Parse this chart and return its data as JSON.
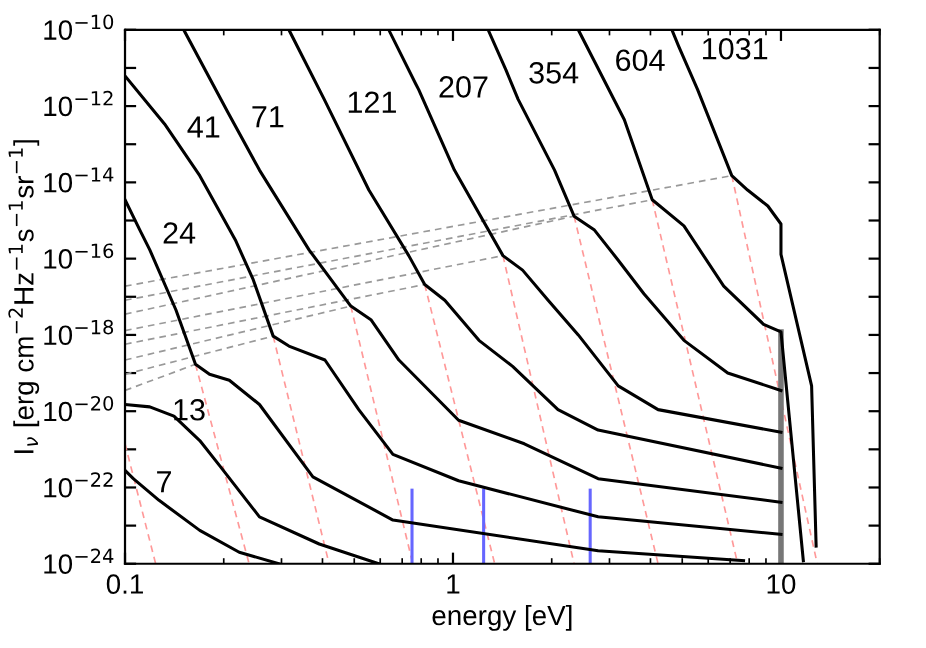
{
  "chart_data": {
    "type": "line",
    "xlabel": "energy [eV]",
    "ylabel": "I$_{ν}$ [erg cm$^{−2}$Hz$^{−1}$s$^{−1}$sr$^{−1}$]",
    "log": "xy",
    "grid": false,
    "legend": "top",
    "marker": "none",
    "xlim": [
      0.1,
      20
    ],
    "xticks": [
      0.1,
      1,
      10
    ],
    "ylim": [
      1e-24,
      1e-10
    ],
    "yticks": [
      {
        "value": 1e-10,
        "label": "10$^{−10}$"
      },
      {
        "value": 1e-11,
        "label": null
      },
      {
        "value": 1e-12,
        "label": "10$^{−12}$"
      },
      {
        "value": 1e-13,
        "label": null
      },
      {
        "value": 1e-14,
        "label": "10$^{−14}$"
      },
      {
        "value": 1e-15,
        "label": null
      },
      {
        "value": 1e-16,
        "label": "10$^{−16}$"
      },
      {
        "value": 1e-17,
        "label": null
      },
      {
        "value": 1e-18,
        "label": "10$^{−18}$"
      },
      {
        "value": 1e-19,
        "label": null
      },
      {
        "value": 1e-20,
        "label": "10$^{−20}$"
      },
      {
        "value": 1e-21,
        "label": null
      },
      {
        "value": 1e-22,
        "label": "10$^{−22}$"
      },
      {
        "value": 1e-23,
        "label": null
      },
      {
        "value": 1e-24,
        "label": "10$^{−24}$"
      }
    ],
    "series": [
      {
        "color": "#ff9999",
        "line_style": "dashed",
        "x": [
          7.08,
          12.9
        ],
        "values": [
          1.5e-14,
          1e-24
        ]
      },
      {
        "color": "#ff9999",
        "line_style": "dashed",
        "x": [
          4.05,
          7.38
        ],
        "values": [
          3.5e-15,
          1e-24
        ]
      },
      {
        "color": "#ff9999",
        "line_style": "dashed",
        "x": [
          2.34,
          4.22
        ],
        "values": [
          1.3e-15,
          1e-24
        ]
      },
      {
        "color": "#ff9999",
        "line_style": "dashed",
        "x": [
          1.42,
          2.34
        ],
        "values": [
          1.2e-16,
          1e-24
        ]
      },
      {
        "color": "#ff9999",
        "line_style": "dashed",
        "x": [
          0.82,
          1.34
        ],
        "values": [
          2.1e-17,
          1e-24
        ]
      },
      {
        "color": "#ff9999",
        "line_style": "dashed",
        "x": [
          0.488,
          0.754
        ],
        "values": [
          5.7e-18,
          1e-24
        ]
      },
      {
        "color": "#ff9999",
        "line_style": "dashed",
        "x": [
          0.283,
          0.419
        ],
        "values": [
          9.3e-19,
          1e-24
        ]
      },
      {
        "color": "#ff9999",
        "line_style": "dashed",
        "x": [
          0.164,
          0.239
        ],
        "values": [
          1.7e-19,
          1e-24
        ]
      },
      {
        "color": "#ff9999",
        "line_style": "dashed",
        "x": [
          0.1,
          0.124
        ],
        "values": [
          1.4e-21,
          1e-24
        ]
      },
      {
        "color": "#999999",
        "line_style": "dashed",
        "x": [
          0.1,
          7.08
        ],
        "values": [
          1.9e-17,
          1.5e-14
        ]
      },
      {
        "color": "#999999",
        "line_style": "dashed",
        "x": [
          0.1,
          4.05
        ],
        "values": [
          8.1e-18,
          3.5e-15
        ]
      },
      {
        "color": "#999999",
        "line_style": "dashed",
        "x": [
          0.1,
          2.34
        ],
        "values": [
          3.5e-18,
          1.3e-15
        ]
      },
      {
        "color": "#999999",
        "line_style": "dashed",
        "x": [
          0.1,
          1.42
        ],
        "values": [
          1.3e-18,
          1.2e-16
        ]
      },
      {
        "color": "#999999",
        "line_style": "dashed",
        "x": [
          0.1,
          0.82
        ],
        "values": [
          5.7e-19,
          2.1e-17
        ]
      },
      {
        "color": "#999999",
        "line_style": "dashed",
        "x": [
          0.1,
          0.488
        ],
        "values": [
          2.2e-19,
          5.7e-18
        ]
      },
      {
        "color": "#999999",
        "line_style": "dashed",
        "x": [
          0.1,
          0.283
        ],
        "values": [
          9.3e-20,
          9.3e-19
        ]
      },
      {
        "color": "#999999",
        "line_style": "dashed",
        "x": [
          0.1,
          0.164
        ],
        "values": [
          3.5e-20,
          1.7e-19
        ]
      },
      {
        "color": "#6666ff",
        "line_style": "solid",
        "x": [
          0.75,
          0.75
        ],
        "values": [
          8.5e-23,
          1e-24
        ]
      },
      {
        "color": "#6666ff",
        "line_style": "solid",
        "x": [
          1.24,
          1.24
        ],
        "values": [
          8.5e-23,
          1e-24
        ]
      },
      {
        "color": "#6666ff",
        "line_style": "solid",
        "x": [
          2.62,
          2.62
        ],
        "values": [
          8.5e-23,
          1e-24
        ]
      },
      {
        "color": "#777777",
        "line_style": "solid",
        "x": [
          10,
          10
        ],
        "values": [
          1.2e-18,
          1e-24
        ]
      },
      {
        "name": "1031",
        "color": "#000000",
        "line_style": "solid",
        "x": [
          4.65,
          4.87,
          5.57,
          6.59,
          7.08,
          7.91,
          9.12,
          10,
          10,
          12.4,
          12.8
        ],
        "values": [
          1e-10,
          3.8e-11,
          2.7e-12,
          7.1e-14,
          1.5e-14,
          6.3e-15,
          2.4e-15,
          8.1e-16,
          1.3e-16,
          4.6e-20,
          2.9e-24
        ]
      },
      {
        "name": "604",
        "color": "#000000",
        "line_style": "solid",
        "x": [
          2.41,
          2.66,
          3.33,
          4.05,
          5.06,
          6.69,
          8.85,
          10,
          11.7
        ],
        "values": [
          1e-10,
          1.9e-11,
          4.4e-13,
          3.5e-15,
          7.2e-16,
          1.9e-17,
          1.9e-18,
          1.2e-18,
          1.2e-24
        ]
      },
      {
        "name": "354",
        "color": "#000000",
        "line_style": "solid",
        "x": [
          1.28,
          1.45,
          1.58,
          2.04,
          2.34,
          2.7,
          3.19,
          3.82,
          5.06,
          6.88,
          10
        ],
        "values": [
          1e-10,
          8.9e-12,
          1.5e-12,
          2.1e-14,
          1.3e-15,
          5.6e-16,
          9.1e-17,
          1.2e-17,
          7.2e-19,
          1e-19,
          3.5e-20
        ]
      },
      {
        "name": "207",
        "color": "#000000",
        "line_style": "solid",
        "x": [
          0.637,
          0.77,
          0.786,
          1.01,
          1.42,
          1.63,
          1.95,
          2.41,
          3.19,
          4.22,
          10
        ],
        "values": [
          1e-10,
          3.8e-12,
          2.7e-12,
          2.1e-14,
          1.2e-16,
          5e-17,
          8.1e-18,
          1e-18,
          4.6e-20,
          1.1e-20,
          2.8e-21
        ]
      },
      {
        "name": "121",
        "color": "#000000",
        "line_style": "solid",
        "x": [
          0.316,
          0.405,
          0.554,
          0.733,
          0.82,
          0.944,
          1.2,
          1.52,
          2.09,
          2.77,
          10
        ],
        "values": [
          1e-10,
          1.5e-12,
          6.3e-15,
          1.2e-16,
          2.1e-17,
          8.1e-18,
          7.2e-19,
          1.5e-19,
          1.1e-20,
          3.2e-21,
          3.2e-22
        ]
      },
      {
        "name": "71",
        "color": "#000000",
        "line_style": "solid",
        "x": [
          0.151,
          0.207,
          0.257,
          0.364,
          0.488,
          0.562,
          0.684,
          1.04,
          1.65,
          2.77,
          10
        ],
        "values": [
          1e-10,
          6.3e-13,
          2.1e-14,
          1.7e-16,
          5.7e-18,
          2.5e-18,
          2.2e-19,
          5.8e-21,
          1.4e-21,
          1.7e-22,
          4.1e-23
        ]
      },
      {
        "name": "41",
        "color": "#000000",
        "line_style": "solid",
        "x": [
          0.1,
          0.132,
          0.169,
          0.217,
          0.246,
          0.283,
          0.316,
          0.407,
          0.516,
          0.656,
          1.04,
          2.77,
          10
        ],
        "values": [
          6.2e-12,
          3.4e-13,
          1.5e-14,
          3.1e-16,
          2.8e-17,
          9.3e-19,
          5.1e-19,
          2.2e-19,
          1.1e-20,
          7.4e-22,
          1.5e-22,
          1.7e-23,
          5.9e-24
        ]
      },
      {
        "name": "24",
        "color": "#000000",
        "line_style": "solid",
        "x": [
          0.1,
          0.111,
          0.119,
          0.143,
          0.164,
          0.181,
          0.208,
          0.257,
          0.374,
          0.656,
          2.77,
          7.69
        ],
        "values": [
          3.5e-15,
          5.6e-16,
          1.7e-16,
          4.5e-18,
          1.7e-19,
          9.3e-20,
          6.5e-20,
          1.5e-20,
          1.9e-22,
          1.4e-23,
          2.2e-24,
          1.2e-24
        ]
      },
      {
        "name": "13",
        "color": "#000000",
        "line_style": "solid",
        "x": [
          0.1,
          0.119,
          0.141,
          0.169,
          0.194,
          0.257,
          0.391,
          0.594
        ],
        "values": [
          1.5e-20,
          1.3e-20,
          7.4e-21,
          1.7e-21,
          3.8e-22,
          1.7e-23,
          3.3e-24,
          1e-24
        ]
      },
      {
        "name": "7",
        "color": "#000000",
        "line_style": "solid",
        "x": [
          0.1,
          0.106,
          0.127,
          0.169,
          0.223,
          0.295
        ],
        "values": [
          2.8e-22,
          1.7e-22,
          4.6e-23,
          7.5e-24,
          2e-24,
          1e-24
        ]
      }
    ]
  }
}
